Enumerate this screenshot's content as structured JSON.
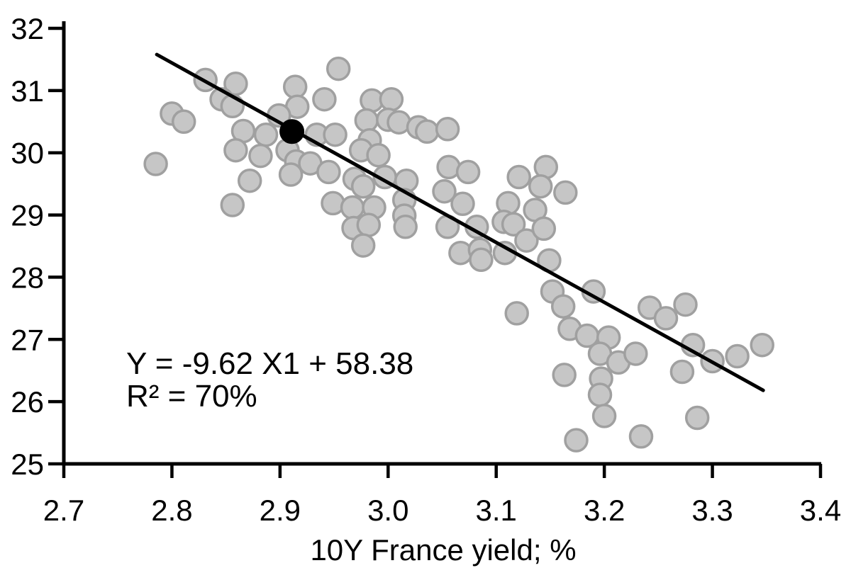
{
  "figure": {
    "background": "#ffffff"
  },
  "annotation": {
    "line1": "Y = -9.62 X1 + 58.38",
    "line2": "R² = 70%"
  },
  "axes": {
    "x": {
      "title": "10Y France yield; %",
      "min": 2.7,
      "max": 3.4,
      "tick_labels": [
        "2.7",
        "2.8",
        "2.9",
        "3.0",
        "3.1",
        "3.2",
        "3.3",
        "3.4"
      ],
      "tick_values": [
        2.7,
        2.8,
        2.9,
        3.0,
        3.1,
        3.2,
        3.3,
        3.4
      ]
    },
    "y": {
      "title": "",
      "min": 25,
      "max": 32,
      "tick_labels": [
        "25",
        "26",
        "27",
        "28",
        "29",
        "30",
        "31",
        "32"
      ],
      "tick_values": [
        25,
        26,
        27,
        28,
        29,
        30,
        31,
        32
      ]
    }
  },
  "colors": {
    "point_fill": "#c6c6c6",
    "point_stroke": "#a0a0a0",
    "trend_line": "#000000",
    "highlight_point": "#000000",
    "axis": "#000000",
    "text": "#000000"
  },
  "chart_data": {
    "type": "scatter",
    "title": "",
    "xlabel": "10Y France yield; %",
    "ylabel": "",
    "xlim": [
      2.7,
      3.4
    ],
    "ylim": [
      25,
      32
    ],
    "grid": false,
    "legend": false,
    "series": [
      {
        "name": "observations",
        "marker": "circle",
        "color": "#c6c6c6",
        "points": [
          [
            2.831,
            31.17
          ],
          [
            2.859,
            31.11
          ],
          [
            2.846,
            30.86
          ],
          [
            2.856,
            30.75
          ],
          [
            2.8,
            30.63
          ],
          [
            2.811,
            30.5
          ],
          [
            2.785,
            29.82
          ],
          [
            2.914,
            31.06
          ],
          [
            2.916,
            30.74
          ],
          [
            2.899,
            30.6
          ],
          [
            2.887,
            30.29
          ],
          [
            2.866,
            30.35
          ],
          [
            2.859,
            30.04
          ],
          [
            2.882,
            29.95
          ],
          [
            2.954,
            31.35
          ],
          [
            2.941,
            30.86
          ],
          [
            2.934,
            30.29
          ],
          [
            2.951,
            30.29
          ],
          [
            2.907,
            30.04
          ],
          [
            2.915,
            29.86
          ],
          [
            2.928,
            29.83
          ],
          [
            2.91,
            29.65
          ],
          [
            2.872,
            29.55
          ],
          [
            2.856,
            29.16
          ],
          [
            2.985,
            30.84
          ],
          [
            3.003,
            30.86
          ],
          [
            2.98,
            30.52
          ],
          [
            3.0,
            30.53
          ],
          [
            3.01,
            30.49
          ],
          [
            2.983,
            30.2
          ],
          [
            2.975,
            30.04
          ],
          [
            2.991,
            29.96
          ],
          [
            3.028,
            30.41
          ],
          [
            3.036,
            30.34
          ],
          [
            3.055,
            30.38
          ],
          [
            3.056,
            29.77
          ],
          [
            3.074,
            29.69
          ],
          [
            3.146,
            29.77
          ],
          [
            2.945,
            29.69
          ],
          [
            2.969,
            29.58
          ],
          [
            2.977,
            29.46
          ],
          [
            2.997,
            29.61
          ],
          [
            3.017,
            29.55
          ],
          [
            2.949,
            29.19
          ],
          [
            2.967,
            29.12
          ],
          [
            2.987,
            29.12
          ],
          [
            3.015,
            29.24
          ],
          [
            3.015,
            28.99
          ],
          [
            3.016,
            28.81
          ],
          [
            2.968,
            28.79
          ],
          [
            2.982,
            28.84
          ],
          [
            2.977,
            28.51
          ],
          [
            3.052,
            29.38
          ],
          [
            3.069,
            29.18
          ],
          [
            3.055,
            28.81
          ],
          [
            3.082,
            28.81
          ],
          [
            3.067,
            28.39
          ],
          [
            3.085,
            28.44
          ],
          [
            3.086,
            28.28
          ],
          [
            3.111,
            29.19
          ],
          [
            3.107,
            28.89
          ],
          [
            3.116,
            28.85
          ],
          [
            3.128,
            28.59
          ],
          [
            3.108,
            28.39
          ],
          [
            3.121,
            29.61
          ],
          [
            3.141,
            29.46
          ],
          [
            3.136,
            29.08
          ],
          [
            3.144,
            28.78
          ],
          [
            3.164,
            29.36
          ],
          [
            3.149,
            28.27
          ],
          [
            3.152,
            27.77
          ],
          [
            3.162,
            27.53
          ],
          [
            3.19,
            27.77
          ],
          [
            3.168,
            27.17
          ],
          [
            3.119,
            27.42
          ],
          [
            3.184,
            27.06
          ],
          [
            3.204,
            27.03
          ],
          [
            3.196,
            26.77
          ],
          [
            3.213,
            26.63
          ],
          [
            3.229,
            26.77
          ],
          [
            3.282,
            26.91
          ],
          [
            3.3,
            26.65
          ],
          [
            3.323,
            26.73
          ],
          [
            3.346,
            26.91
          ],
          [
            3.272,
            26.48
          ],
          [
            3.197,
            26.37
          ],
          [
            3.163,
            26.43
          ],
          [
            3.196,
            26.11
          ],
          [
            3.2,
            25.77
          ],
          [
            3.174,
            25.38
          ],
          [
            3.234,
            25.44
          ],
          [
            3.286,
            25.74
          ],
          [
            3.242,
            27.51
          ],
          [
            3.257,
            27.34
          ],
          [
            3.275,
            27.56
          ]
        ]
      },
      {
        "name": "highlighted-observation",
        "marker": "circle-filled",
        "color": "#000000",
        "points": [
          [
            2.911,
            30.34
          ]
        ]
      }
    ],
    "trendline": {
      "slope": -9.62,
      "intercept": 58.38,
      "x_start": 2.786,
      "x_end": 3.347,
      "equation": "Y = -9.62 X1 + 58.38",
      "r_squared": "70%"
    },
    "annotations": [
      "Y = -9.62 X1 + 58.38",
      "R² = 70%"
    ]
  }
}
